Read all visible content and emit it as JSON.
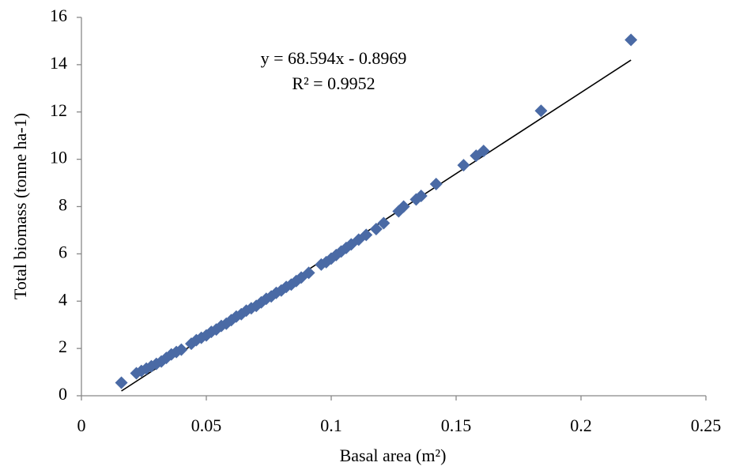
{
  "chart_data": {
    "type": "scatter",
    "x_label": "Basal area (m²)",
    "y_label": "Total biomass (tonne ha-1)",
    "annotations": [
      "y = 68.594x - 0.8969",
      "R² = 0.9952"
    ],
    "trendline": {
      "slope": 68.594,
      "intercept": -0.8969,
      "color": "#000000"
    },
    "color": "#4a6aa5",
    "x": [
      0.016,
      0.022,
      0.024,
      0.026,
      0.028,
      0.03,
      0.032,
      0.034,
      0.036,
      0.038,
      0.04,
      0.044,
      0.046,
      0.048,
      0.05,
      0.052,
      0.054,
      0.056,
      0.058,
      0.06,
      0.062,
      0.064,
      0.066,
      0.068,
      0.07,
      0.072,
      0.074,
      0.076,
      0.078,
      0.08,
      0.082,
      0.084,
      0.086,
      0.088,
      0.091,
      0.096,
      0.098,
      0.1,
      0.102,
      0.104,
      0.106,
      0.108,
      0.111,
      0.114,
      0.118,
      0.121,
      0.127,
      0.129,
      0.134,
      0.136,
      0.142,
      0.153,
      0.158,
      0.161,
      0.184,
      0.22
    ],
    "values": [
      0.55,
      0.95,
      1.05,
      1.15,
      1.25,
      1.35,
      1.45,
      1.6,
      1.75,
      1.85,
      1.95,
      2.2,
      2.35,
      2.45,
      2.55,
      2.7,
      2.8,
      2.95,
      3.05,
      3.2,
      3.35,
      3.45,
      3.6,
      3.7,
      3.8,
      3.95,
      4.1,
      4.2,
      4.35,
      4.45,
      4.6,
      4.7,
      4.85,
      5.0,
      5.2,
      5.55,
      5.65,
      5.8,
      5.95,
      6.1,
      6.25,
      6.4,
      6.6,
      6.8,
      7.05,
      7.3,
      7.8,
      8.0,
      8.3,
      8.45,
      8.95,
      9.75,
      10.15,
      10.35,
      12.05,
      15.05
    ],
    "xlim": [
      0,
      0.25
    ],
    "xticks": [
      0,
      0.05,
      0.1,
      0.15,
      0.2,
      0.25
    ],
    "ylim": [
      0,
      16
    ],
    "yticks": [
      0,
      2,
      4,
      6,
      8,
      10,
      12,
      14,
      16
    ],
    "grid": false
  }
}
